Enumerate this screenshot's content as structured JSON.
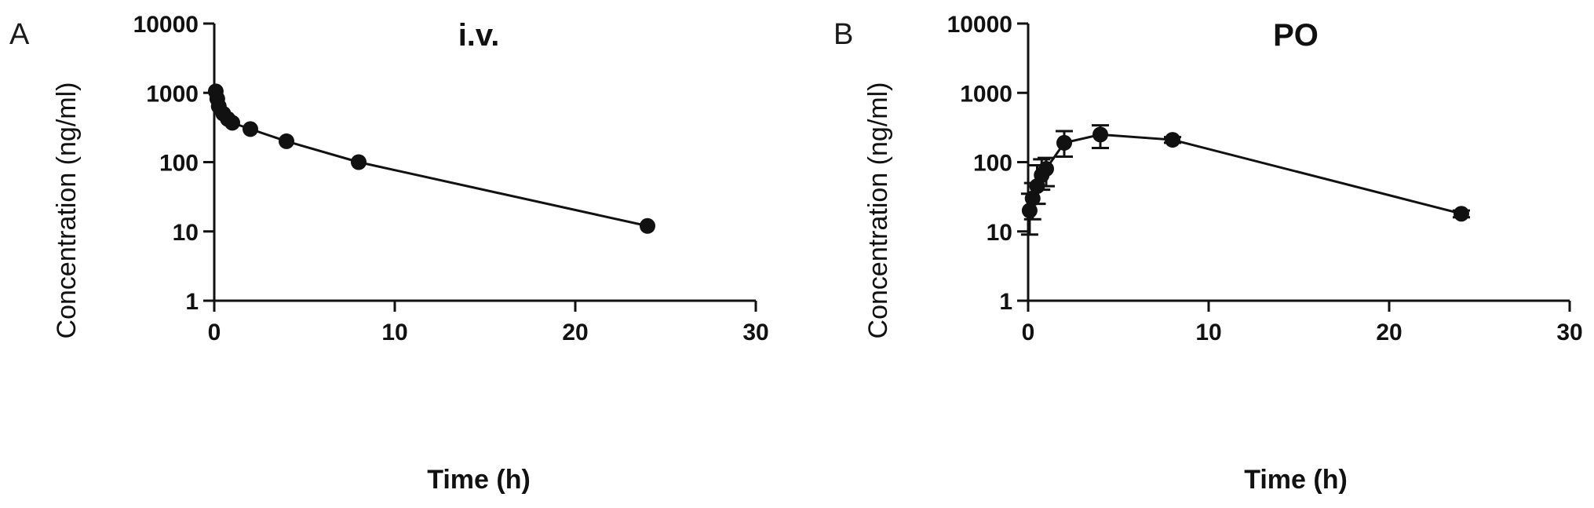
{
  "chart_data": [
    {
      "type": "line",
      "panel": "A",
      "title": "i.v.",
      "xlabel": "Time (h)",
      "ylabel": "Concentration (ng/ml)",
      "xlim": [
        0,
        30
      ],
      "ylim": [
        1,
        10000
      ],
      "yscale": "log",
      "grid": false,
      "xticks": [
        "0",
        "10",
        "20",
        "30"
      ],
      "yticks": [
        "1",
        "10",
        "100",
        "1000",
        "10000"
      ],
      "series": [
        {
          "x": [
            0.083,
            0.167,
            0.25,
            0.5,
            0.75,
            1,
            2,
            4,
            8,
            24
          ],
          "y": [
            1050,
            820,
            640,
            500,
            420,
            370,
            300,
            200,
            100,
            12
          ],
          "err": [
            0,
            0,
            0,
            0,
            0,
            0,
            0,
            0,
            0,
            0
          ]
        }
      ]
    },
    {
      "type": "line",
      "panel": "B",
      "title": "PO",
      "xlabel": "Time (h)",
      "ylabel": "Concentration (ng/ml)",
      "xlim": [
        0,
        30
      ],
      "ylim": [
        1,
        10000
      ],
      "yscale": "log",
      "grid": false,
      "xticks": [
        "0",
        "10",
        "20",
        "30"
      ],
      "yticks": [
        "1",
        "10",
        "100",
        "1000",
        "10000"
      ],
      "series": [
        {
          "x": [
            0.083,
            0.25,
            0.5,
            0.75,
            1,
            2,
            4,
            8,
            24
          ],
          "y": [
            20,
            30,
            45,
            65,
            80,
            190,
            250,
            210,
            18
          ],
          "err_low": [
            9,
            15,
            25,
            40,
            45,
            120,
            160,
            190,
            16
          ],
          "err_high": [
            35,
            50,
            90,
            110,
            115,
            280,
            340,
            230,
            20
          ]
        }
      ]
    }
  ]
}
